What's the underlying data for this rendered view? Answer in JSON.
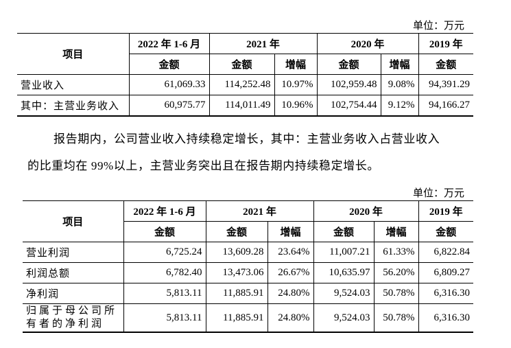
{
  "sections": [
    {
      "unit": "单位：万元",
      "header_top": [
        "项目",
        "2022 年 1-6 月",
        "2021 年",
        "2020 年",
        "2019 年"
      ],
      "header_sub": [
        "金额",
        "金额",
        "增幅",
        "金额",
        "增幅",
        "金额"
      ],
      "rows": [
        [
          "营业收入",
          "61,069.33",
          "114,252.48",
          "10.97%",
          "102,959.48",
          "9.08%",
          "94,391.29"
        ],
        [
          "其中：主营业务收入",
          "60,975.77",
          "114,011.49",
          "10.96%",
          "102,754.44",
          "9.12%",
          "94,166.27"
        ]
      ]
    },
    {
      "unit": "单位：万元",
      "header_top": [
        "项目",
        "2022 年 1-6 月",
        "2021 年",
        "2020 年",
        "2019 年"
      ],
      "header_sub": [
        "金额",
        "金额",
        "增幅",
        "金额",
        "增幅",
        "金额"
      ],
      "rows": [
        [
          "营业利润",
          "6,725.24",
          "13,609.28",
          "23.64%",
          "11,007.21",
          "61.33%",
          "6,822.84"
        ],
        [
          "利润总额",
          "6,782.40",
          "13,473.06",
          "26.67%",
          "10,635.97",
          "56.20%",
          "6,809.27"
        ],
        [
          "净利润",
          "5,813.11",
          "11,885.91",
          "24.80%",
          "9,524.03",
          "50.78%",
          "6,316.30"
        ],
        [
          "归属于母公司所有者的净利润",
          "5,813.11",
          "11,885.91",
          "24.80%",
          "9,524.03",
          "50.78%",
          "6,316.30"
        ]
      ]
    }
  ],
  "paragraph": [
    "报告期内，公司营业收入持续稳定增长，其中：主营业务收入占营业收入",
    "的比重均在 99%以上，主营业务突出且在报告期内持续稳定增长。"
  ]
}
